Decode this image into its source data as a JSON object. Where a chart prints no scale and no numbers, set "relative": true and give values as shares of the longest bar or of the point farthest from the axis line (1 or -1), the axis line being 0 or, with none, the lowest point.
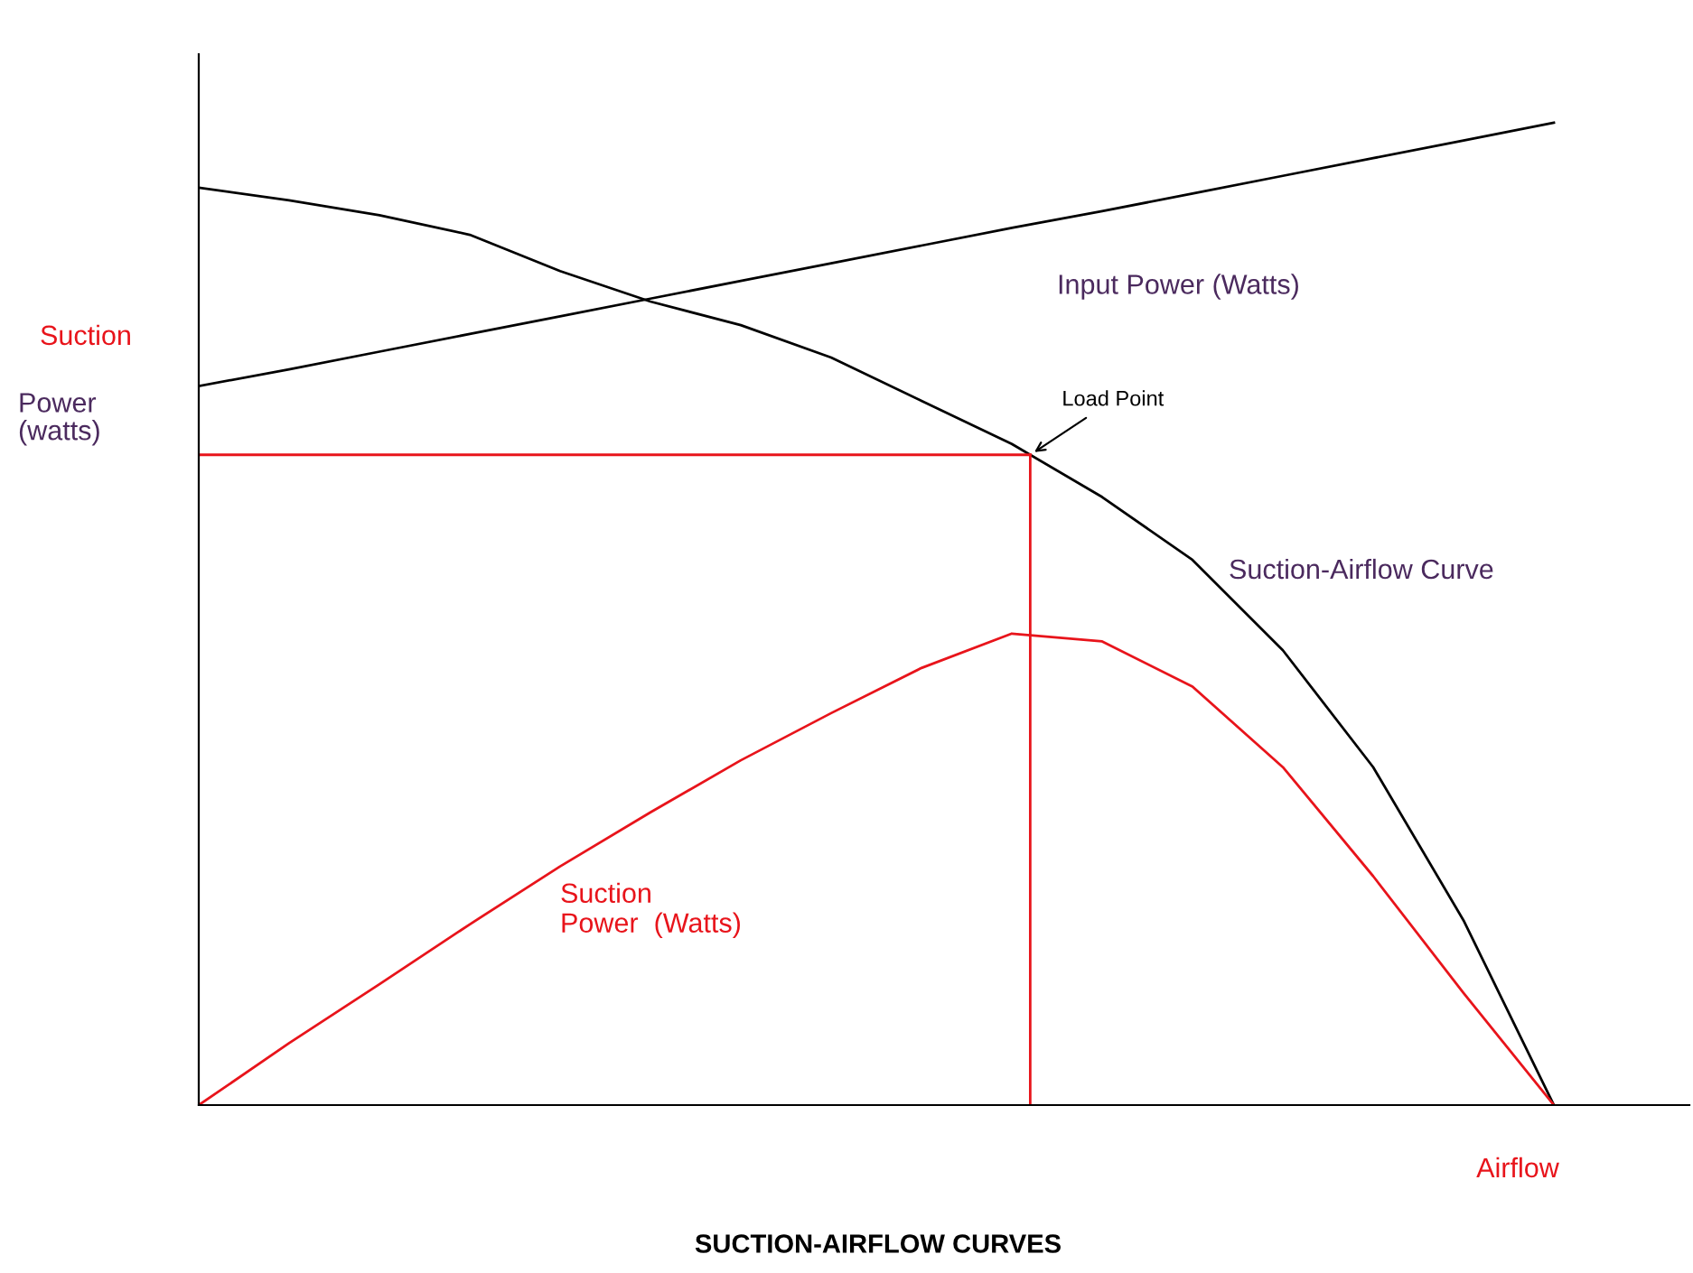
{
  "chart_data": {
    "type": "line",
    "title": "SUCTION-AIRFLOW CURVES",
    "xlabel": "Airflow",
    "ylabel": "Suction Power (watts)",
    "relative": true,
    "legend": false,
    "marker": "none",
    "line_style": "solid",
    "categories": [
      null,
      null,
      null,
      null,
      null,
      null,
      null,
      null,
      null,
      null,
      null,
      null,
      null,
      null,
      null,
      null
    ],
    "series": [
      {
        "name": "Input Power (Watts)",
        "color": "#000000",
        "values": [
          0.732,
          0.749,
          0.767,
          0.785,
          0.803,
          0.821,
          0.839,
          0.857,
          0.875,
          0.893,
          0.91,
          0.928,
          0.946,
          0.964,
          0.982,
          1.0
        ]
      },
      {
        "name": "Suction-Airflow Curve",
        "color": "#000000",
        "values": [
          0.934,
          0.921,
          0.906,
          0.886,
          0.849,
          0.818,
          0.794,
          0.761,
          0.717,
          0.673,
          0.619,
          0.555,
          0.463,
          0.344,
          0.188,
          0.0
        ]
      },
      {
        "name": "Suction Power (Watts)",
        "color": "#e8141b",
        "values": [
          0.0,
          0.063,
          0.123,
          0.184,
          0.243,
          0.298,
          0.351,
          0.399,
          0.445,
          0.48,
          0.472,
          0.426,
          0.344,
          0.233,
          0.114,
          0.0
        ]
      }
    ],
    "ref_lines": [
      {
        "axis": "y",
        "value": 0.662,
        "color": "#e8141b"
      }
    ],
    "annotations": [
      "Load Point"
    ]
  }
}
